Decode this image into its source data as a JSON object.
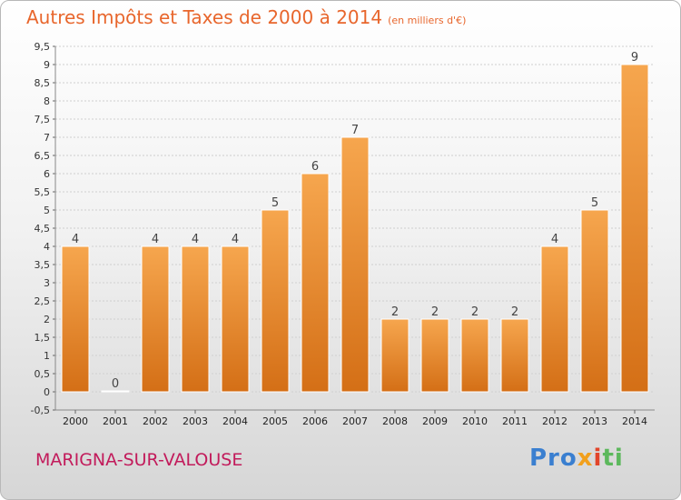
{
  "header": {
    "title": "Autres Impôts et Taxes de 2000 à 2014",
    "unit": "(en milliers d'€)"
  },
  "footer": {
    "commune": "MARIGNA-SUR-VALOUSE",
    "logo": [
      "Pro",
      "x",
      "i",
      "ti"
    ]
  },
  "colors": {
    "title": "#e8662c",
    "bar_top": "#f6a64e",
    "bar_bottom": "#d46f16",
    "commune": "#c21b5b"
  },
  "chart_data": {
    "type": "bar",
    "title": "Autres Impôts et Taxes de 2000 à 2014",
    "categories": [
      "2000",
      "2001",
      "2002",
      "2003",
      "2004",
      "2005",
      "2006",
      "2007",
      "2008",
      "2009",
      "2010",
      "2011",
      "2012",
      "2013",
      "2014"
    ],
    "values": [
      4,
      0,
      4,
      4,
      4,
      5,
      6,
      7,
      2,
      2,
      2,
      2,
      4,
      5,
      9
    ],
    "ylim": [
      -0.5,
      9.5
    ],
    "yticks": [
      "-0,5",
      "0",
      "0,5",
      "1",
      "1,5",
      "2",
      "2,5",
      "3",
      "3,5",
      "4",
      "4,5",
      "5",
      "5,5",
      "6",
      "6,5",
      "7",
      "7,5",
      "8",
      "8,5",
      "9",
      "9,5"
    ],
    "grid": true,
    "xlabel": "",
    "ylabel": ""
  }
}
